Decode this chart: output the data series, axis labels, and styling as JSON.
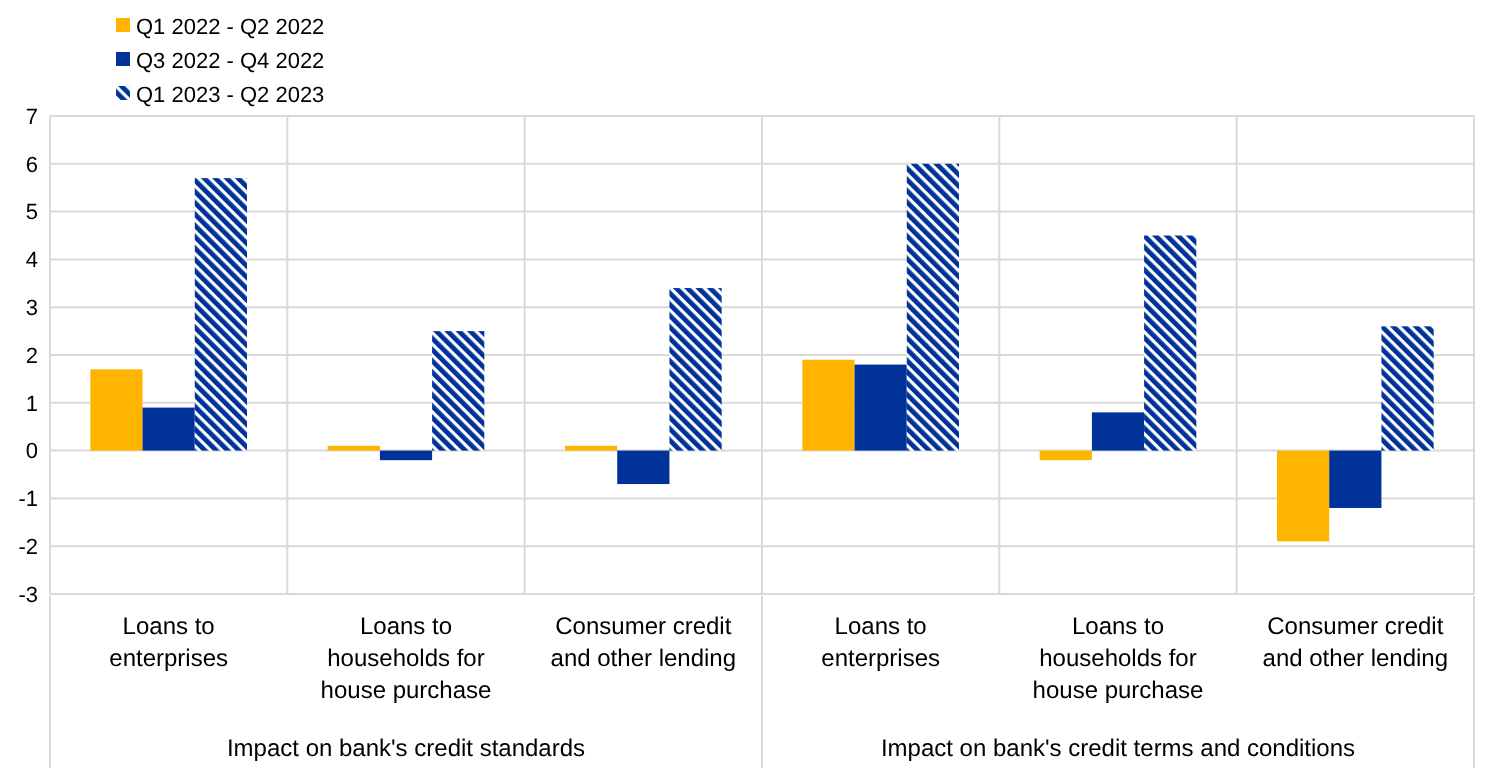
{
  "chart_data": {
    "type": "bar",
    "categories": [
      "Loans to enterprises",
      "Loans to households for house purchase",
      "Consumer credit and other lending",
      "Loans to enterprises",
      "Loans to households for house purchase",
      "Consumer credit and other lending"
    ],
    "series": [
      {
        "name": "Q1 2022 - Q2 2022",
        "color": "#ffb400",
        "values": [
          1.7,
          0.1,
          0.1,
          1.9,
          -0.2,
          -1.9
        ]
      },
      {
        "name": "Q3 2022 - Q4 2022",
        "color": "#003299",
        "values": [
          0.9,
          -0.2,
          -0.7,
          1.8,
          0.8,
          -1.2
        ]
      },
      {
        "name": "Q1 2023 - Q2 2023",
        "color": "#003299",
        "values": [
          5.7,
          2.5,
          3.4,
          6.0,
          4.5,
          2.6
        ]
      }
    ],
    "annotations": [
      "Impact on bank's credit standards",
      "Impact on bank's credit terms and conditions"
    ],
    "ylim": [
      -3,
      7
    ],
    "yticks": [
      -3,
      -2,
      -1,
      0,
      1,
      2,
      3,
      4,
      5,
      6,
      7
    ],
    "grid": "y",
    "legend": "top left"
  }
}
